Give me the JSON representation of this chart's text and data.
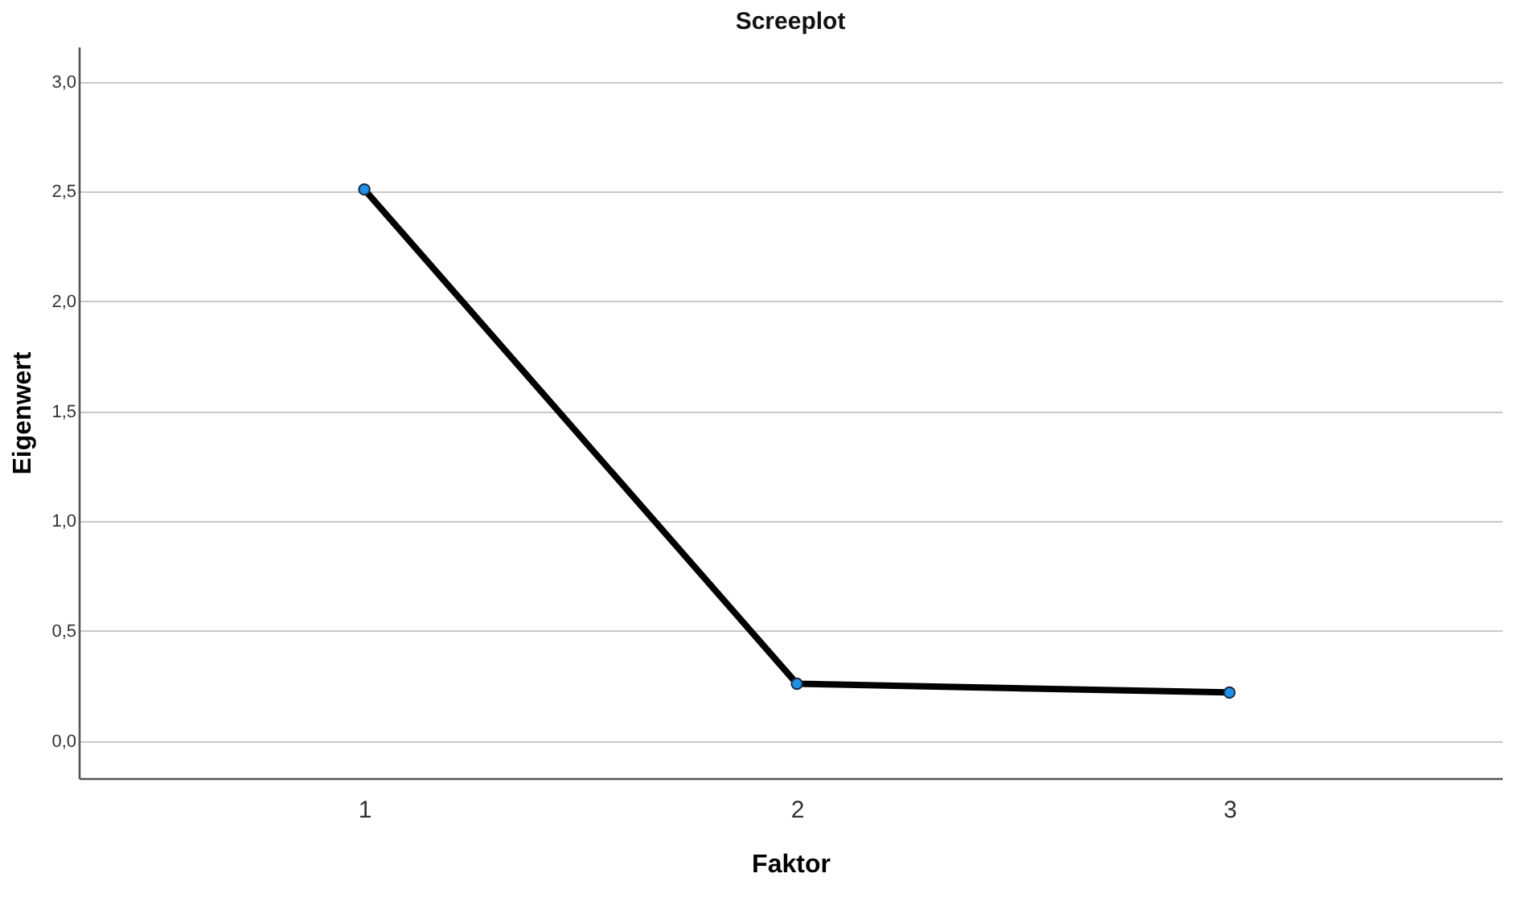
{
  "chart_data": {
    "type": "line",
    "title": "Screeplot",
    "xlabel": "Faktor",
    "ylabel": "Eigenwert",
    "categories": [
      "1",
      "2",
      "3"
    ],
    "series": [
      {
        "color": "#000000",
        "values": [
          2.51,
          0.26,
          0.22
        ]
      }
    ],
    "ylim": [
      -0.17,
      3.16
    ],
    "yticks": [
      {
        "value": 0,
        "label": "0,0"
      },
      {
        "value": 0.5,
        "label": "0,5"
      },
      {
        "value": 1,
        "label": "1,0"
      },
      {
        "value": 1.5,
        "label": "1,5"
      },
      {
        "value": 2,
        "label": "2,0"
      },
      {
        "value": 2.5,
        "label": "2,5"
      },
      {
        "value": 3,
        "label": "3,0"
      }
    ],
    "grid": "y",
    "marker": "circle",
    "line_style": "solid"
  }
}
